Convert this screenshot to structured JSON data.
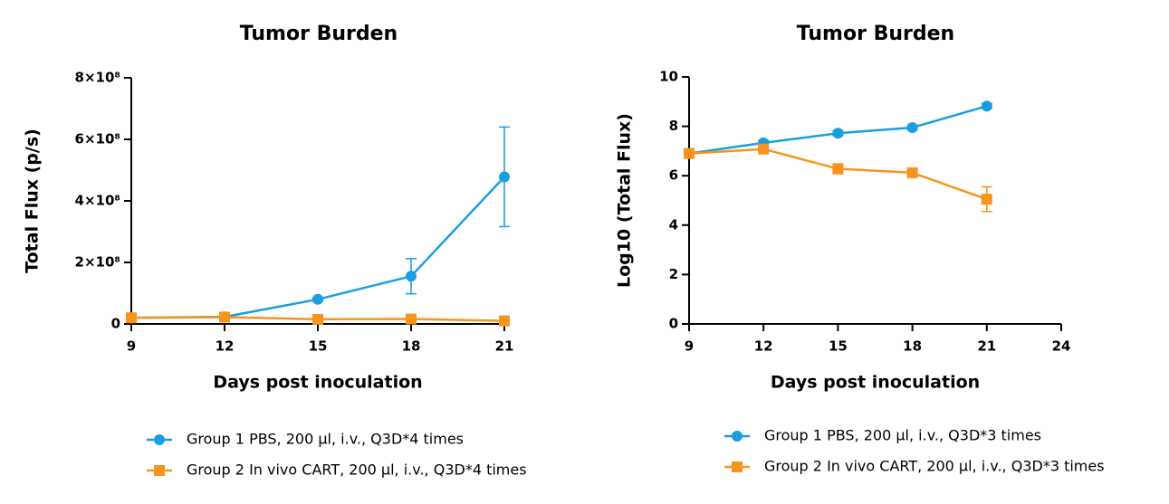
{
  "chart_data": [
    {
      "type": "line",
      "title": "Tumor Burden",
      "x_label": "Days post inoculation",
      "y_label": "Total Flux (p/s)",
      "x": [
        9,
        12,
        15,
        18,
        21
      ],
      "xlim": [
        9,
        21
      ],
      "xticks": [
        9,
        12,
        15,
        18,
        21
      ],
      "ylim": [
        0,
        800000000
      ],
      "yticks": [
        0,
        {
          "value": 200000000,
          "label": "2×10⁸"
        },
        {
          "value": 400000000,
          "label": "4×10⁸"
        },
        {
          "value": 600000000,
          "label": "6×10⁸"
        },
        {
          "value": 800000000,
          "label": "8×10⁸"
        }
      ],
      "series": [
        {
          "name": "Group 1 PBS, 200 μl, i.v., Q3D*4 times",
          "color": "#1a9ede",
          "marker": "circle",
          "values": [
            20000000,
            23000000,
            80000000,
            155000000,
            478000000
          ],
          "errors": [
            3000000,
            3000000,
            5000000,
            57000000,
            162000000
          ]
        },
        {
          "name": "Group 2 In vivo CART, 200 μl, i.v., Q3D*4 times",
          "color": "#f7941d",
          "marker": "square",
          "values": [
            20000000,
            22000000,
            15000000,
            16000000,
            10000000
          ],
          "errors": [
            3000000,
            5000000,
            3000000,
            3000000,
            2000000
          ]
        }
      ]
    },
    {
      "type": "line",
      "title": "Tumor Burden",
      "x_label": "Days post inoculation",
      "y_label": "Log10  (Total Flux)",
      "x": [
        9,
        12,
        15,
        18,
        21
      ],
      "xlim": [
        9,
        24
      ],
      "xticks": [
        9,
        12,
        15,
        18,
        21,
        24
      ],
      "ylim": [
        0,
        10
      ],
      "yticks": [
        0,
        2,
        4,
        6,
        8,
        10
      ],
      "series": [
        {
          "name": "Group 1 PBS, 200 μl, i.v., Q3D*3 times",
          "color": "#1a9ede",
          "marker": "circle",
          "values": [
            6.9,
            7.33,
            7.72,
            7.95,
            8.82
          ],
          "errors": [
            0.1,
            0.1,
            0.1,
            0.1,
            0.1
          ]
        },
        {
          "name": "Group 2 In vivo CART, 200 μl, i.v., Q3D*3 times",
          "color": "#f7941d",
          "marker": "square",
          "values": [
            6.9,
            7.08,
            6.28,
            6.12,
            5.05
          ],
          "errors": [
            0.1,
            0.1,
            0.2,
            0.1,
            0.5
          ]
        }
      ]
    }
  ]
}
